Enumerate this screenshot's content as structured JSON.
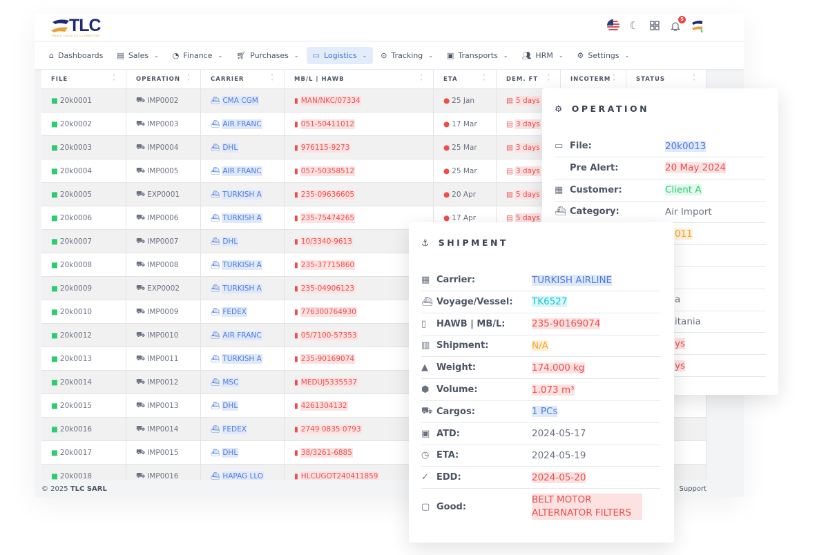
{
  "brand": {
    "logo_text": "TLC",
    "logo_tagline": "TRANSIT LOGISTICS & CONSULTING",
    "colors": {
      "navy": "#1e2a78",
      "orange": "#e8a13a",
      "accent": "#3b6fd8"
    }
  },
  "header": {
    "icons": [
      "us-flag-icon",
      "moon-icon",
      "grid-icon",
      "bell-icon",
      "avatar"
    ],
    "notifications": "5"
  },
  "nav": [
    {
      "label": "Dashboards",
      "icon": "home-icon"
    },
    {
      "label": "Sales",
      "icon": "briefcase-icon",
      "dropdown": true
    },
    {
      "label": "Finance",
      "icon": "pie-chart-icon",
      "dropdown": true
    },
    {
      "label": "Purchases",
      "icon": "cart-icon",
      "dropdown": true
    },
    {
      "label": "Logistics",
      "icon": "folder-icon",
      "dropdown": true,
      "active": true
    },
    {
      "label": "Tracking",
      "icon": "map-pin-icon",
      "dropdown": true
    },
    {
      "label": "Transports",
      "icon": "bus-icon",
      "dropdown": true
    },
    {
      "label": "HRM",
      "icon": "users-icon",
      "dropdown": true
    },
    {
      "label": "Settings",
      "icon": "gear-icon",
      "dropdown": true
    }
  ],
  "table": {
    "columns": [
      "FILE",
      "OPERATION",
      "CARRIER",
      "MB/L | HAWB",
      "ETA",
      "DEM. FT",
      "INCOTERM",
      "STATUS"
    ],
    "rows": [
      [
        "20k0001",
        "IMP0002",
        "CMA CGM",
        "MAN/NKC/07334",
        "25 Jan",
        "5 days"
      ],
      [
        "20k0002",
        "IMP0003",
        "AIR FRANC",
        "051-50411012",
        "17 Mar",
        "3 days"
      ],
      [
        "20k0003",
        "IMP0004",
        "DHL",
        "976115-9273",
        "25 Mar",
        "3 days"
      ],
      [
        "20k0004",
        "IMP0005",
        "AIR FRANC",
        "057-50358512",
        "25 Mar",
        "3 days"
      ],
      [
        "20k0005",
        "EXP0001",
        "TURKISH A",
        "235-09636605",
        "20 Apr",
        "5 days"
      ],
      [
        "20k0006",
        "IMP0006",
        "TURKISH A",
        "235-75474265",
        "17 Apr",
        "5 days"
      ],
      [
        "20k0007",
        "IMP0007",
        "DHL",
        "10/3340-9613"
      ],
      [
        "20k0008",
        "IMP0008",
        "TURKISH A",
        "235-37715860"
      ],
      [
        "20k0009",
        "EXP0002",
        "TURKISH A",
        "235-04906123"
      ],
      [
        "20k0010",
        "IMP0009",
        "FEDEX",
        "776300764930"
      ],
      [
        "20k0012",
        "IMP0010",
        "AIR FRANC",
        "05/7100-57353"
      ],
      [
        "20k0013",
        "IMP0011",
        "TURKISH A",
        "235-90169074"
      ],
      [
        "20k0014",
        "IMP0012",
        "MSC",
        "MEDUJ5335537"
      ],
      [
        "20k0015",
        "IMP0013",
        "DHL",
        "4261304132"
      ],
      [
        "20k0016",
        "IMP0014",
        "FEDEX",
        "2749 0835 0793"
      ],
      [
        "20k0017",
        "IMP0015",
        "DHL",
        "38/3261-6885"
      ],
      [
        "20k0018",
        "IMP0016",
        "HAPAG LLO",
        "HLCUGOT240411859"
      ]
    ]
  },
  "footer": {
    "copyright": "© 2025",
    "company": "TLC SARL",
    "support": "Support"
  },
  "operation": {
    "title": "OPERATION",
    "rows": [
      {
        "label": "File:",
        "value": "20k0013",
        "style": "vb",
        "icon": "folder-icon"
      },
      {
        "label": "Pre Alert:",
        "value": "20 May 2024",
        "style": "vr",
        "icon": "bell-icon"
      },
      {
        "label": "Customer:",
        "value": "Client A",
        "style": "vg",
        "icon": "building-icon"
      },
      {
        "label": "Category:",
        "value": "Air Import",
        "style": "",
        "icon": "ship-icon"
      },
      {
        "label": "",
        "value": "011",
        "style": "vo"
      },
      {
        "label": "",
        "value": ""
      },
      {
        "label": "",
        "value": ""
      },
      {
        "label": "",
        "value": "a"
      },
      {
        "label": "",
        "value": "itania"
      },
      {
        "label": "",
        "value": "ys",
        "style": "vr"
      },
      {
        "label": "",
        "value": "ys",
        "style": "vr"
      }
    ]
  },
  "shipment": {
    "title": "SHIPMENT",
    "rows": [
      {
        "label": "Carrier:",
        "value": "TURKISH AIRLINE",
        "style": "vb",
        "icon": "building-icon"
      },
      {
        "label": "Voyage/Vessel:",
        "value": "TK6527",
        "style": "vc",
        "icon": "ship-icon"
      },
      {
        "label": "HAWB | MB/L:",
        "value": "235-90169074",
        "style": "vr",
        "icon": "document-icon"
      },
      {
        "label": "Shipment:",
        "value": "N/A",
        "style": "vo",
        "icon": "barcode-icon"
      },
      {
        "label": "Weight:",
        "value": "174.000 kg",
        "style": "vr",
        "icon": "weight-icon"
      },
      {
        "label": "Volume:",
        "value": "1.073 m³",
        "style": "vr",
        "icon": "box-icon"
      },
      {
        "label": "Cargos:",
        "value": "1 PCs",
        "style": "vb",
        "icon": "cart-plus-icon"
      },
      {
        "label": "ATD:",
        "value": "2024-05-17",
        "style": "",
        "icon": "calendar-check-icon"
      },
      {
        "label": "ETA:",
        "value": "2024-05-19",
        "style": "",
        "icon": "clock-icon"
      },
      {
        "label": "EDD:",
        "value": "2024-05-20",
        "style": "vr",
        "icon": "check-circle-icon"
      },
      {
        "label": "Good:",
        "value": "BELT MOTOR ALTERNATOR FILTERS",
        "style": "vr",
        "icon": "comment-icon"
      }
    ]
  }
}
